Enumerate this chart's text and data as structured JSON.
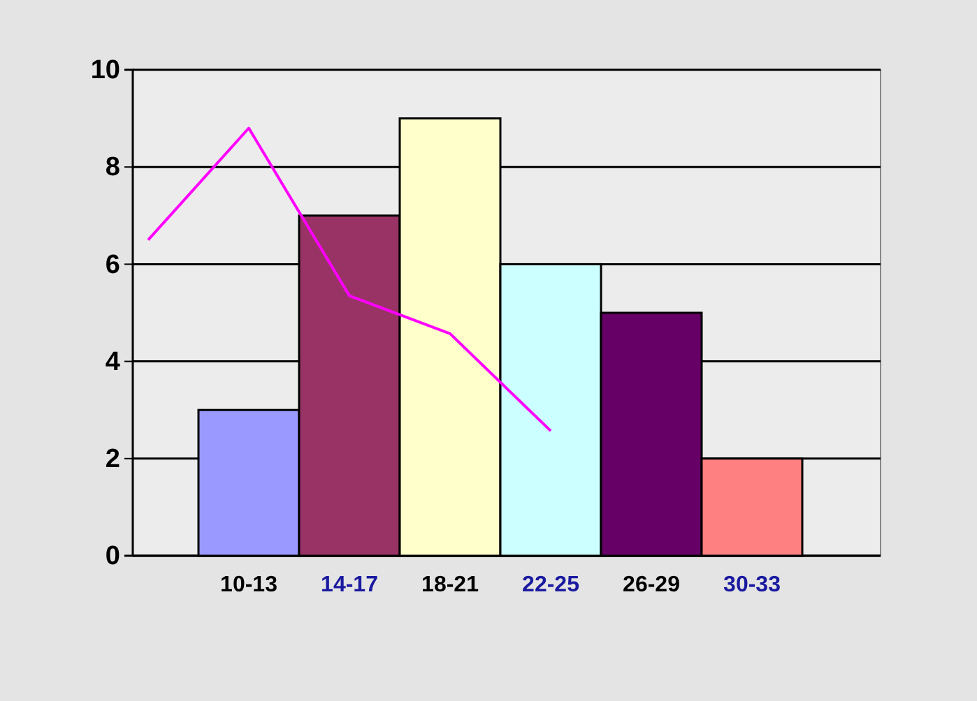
{
  "chart_data": {
    "type": "bar",
    "categories": [
      null,
      "10-13",
      "14-17",
      "18-21",
      "22-25",
      "26-29",
      "30-33",
      null
    ],
    "values": [
      null,
      3,
      7,
      9,
      6,
      5,
      2,
      null
    ],
    "colors": [
      null,
      "#9999ff",
      "#993366",
      "#ffffcc",
      "#ccffff",
      "#660066",
      "#ff8080",
      null
    ],
    "series": [
      {
        "type": "line",
        "color": "#ff00ff",
        "values": [
          6.5,
          8.8,
          5.35,
          4.57,
          2.57,
          null,
          null,
          null
        ]
      }
    ],
    "ylim": [
      0,
      10
    ],
    "yticks": [
      0,
      2,
      4,
      6,
      8,
      10
    ],
    "grid": "y",
    "marker": "none"
  }
}
